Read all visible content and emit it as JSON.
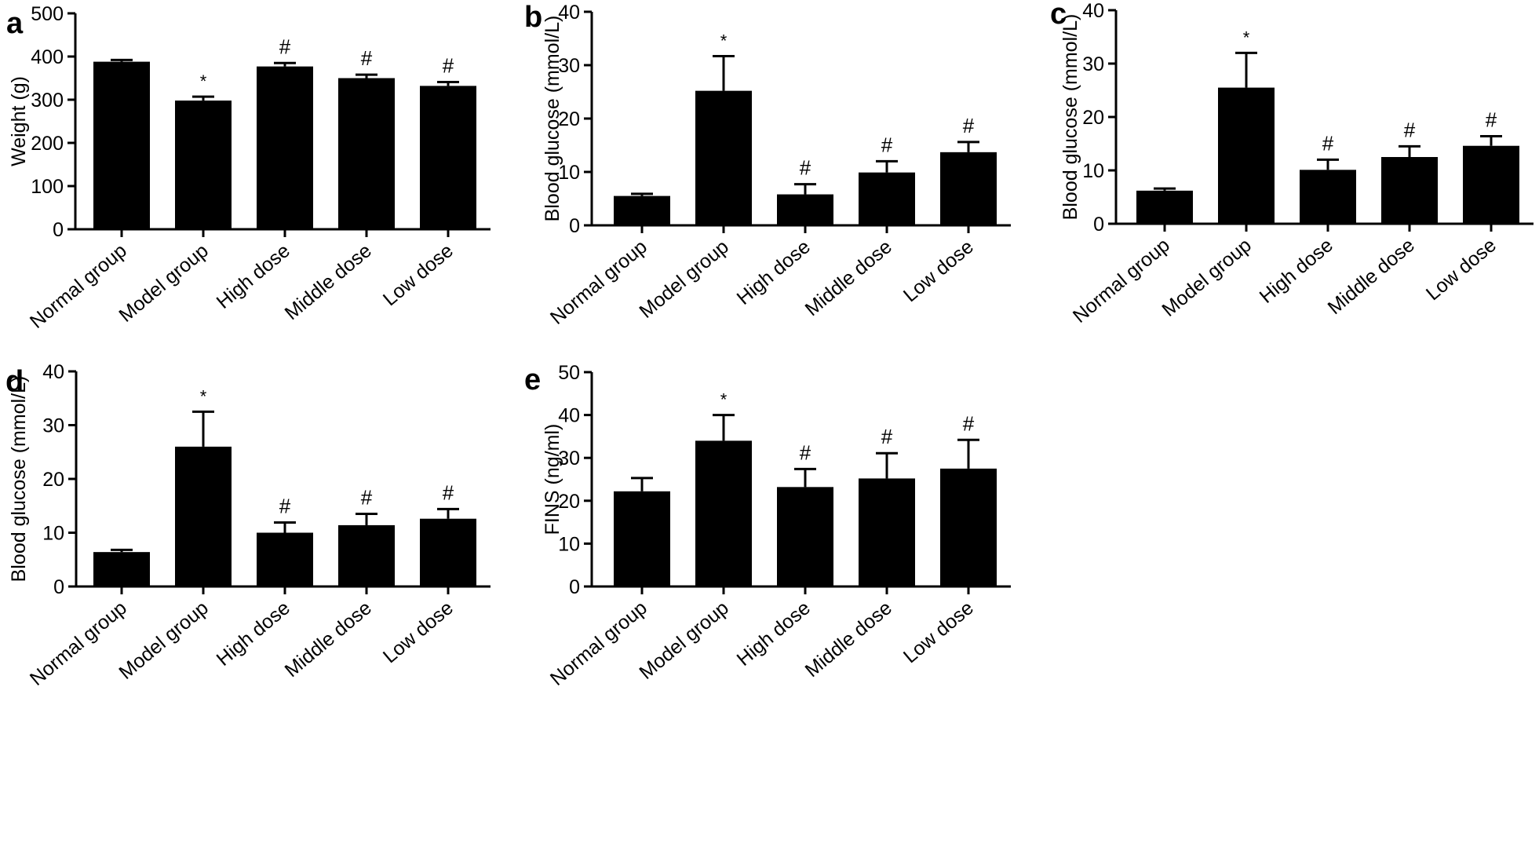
{
  "figure": {
    "background": "#ffffff",
    "bar_color": "#000000"
  },
  "chart_data": [
    {
      "id": "a",
      "panel_label": "a",
      "type": "bar",
      "ylabel": "Weight (g)",
      "ylim": [
        0,
        500
      ],
      "yticks": [
        0,
        100,
        200,
        300,
        400,
        500
      ],
      "categories": [
        "Normal group",
        "Model group",
        "High dose",
        "Middle dose",
        "Low dose"
      ],
      "values": [
        388,
        298,
        377,
        350,
        332
      ],
      "errors": [
        4,
        9,
        8,
        8,
        9
      ],
      "annotations": [
        "",
        "*",
        "#",
        "#",
        "#"
      ]
    },
    {
      "id": "b",
      "panel_label": "b",
      "type": "bar",
      "ylabel": "Blood glucose (mmol/L)",
      "ylim": [
        0,
        40
      ],
      "yticks": [
        0,
        10,
        20,
        30,
        40
      ],
      "categories": [
        "Normal group",
        "Model group",
        "High dose",
        "Middle dose",
        "Low dose"
      ],
      "values": [
        5.5,
        25.2,
        5.8,
        9.9,
        13.7
      ],
      "errors": [
        0.4,
        6.5,
        1.9,
        2.1,
        1.9
      ],
      "annotations": [
        "",
        "*",
        "#",
        "#",
        "#"
      ]
    },
    {
      "id": "c",
      "panel_label": "c",
      "type": "bar",
      "ylabel": "Blood glucose (mmol/L)",
      "ylim": [
        0,
        40
      ],
      "yticks": [
        0,
        10,
        20,
        30,
        40
      ],
      "categories": [
        "Normal group",
        "Model group",
        "High dose",
        "Middle dose",
        "Low dose"
      ],
      "values": [
        6.2,
        25.5,
        10.1,
        12.5,
        14.6
      ],
      "errors": [
        0.4,
        6.5,
        1.9,
        2.0,
        1.8
      ],
      "annotations": [
        "",
        "*",
        "#",
        "#",
        "#"
      ]
    },
    {
      "id": "d",
      "panel_label": "d",
      "type": "bar",
      "ylabel": "Blood glucose (mmol/L)",
      "ylim": [
        0,
        40
      ],
      "yticks": [
        0,
        10,
        20,
        30,
        40
      ],
      "categories": [
        "Normal group",
        "Model group",
        "High dose",
        "Middle dose",
        "Low dose"
      ],
      "values": [
        6.4,
        26.0,
        10.0,
        11.4,
        12.6
      ],
      "errors": [
        0.4,
        6.5,
        1.9,
        2.1,
        1.8
      ],
      "annotations": [
        "",
        "*",
        "#",
        "#",
        "#"
      ]
    },
    {
      "id": "e",
      "panel_label": "e",
      "type": "bar",
      "ylabel": "FINS (ng/ml)",
      "ylim": [
        0,
        50
      ],
      "yticks": [
        0,
        10,
        20,
        30,
        40,
        50
      ],
      "categories": [
        "Normal group",
        "Model group",
        "High dose",
        "Middle dose",
        "Low dose"
      ],
      "values": [
        22.2,
        34.0,
        23.2,
        25.2,
        27.5
      ],
      "errors": [
        3.1,
        6.0,
        4.2,
        5.9,
        6.7
      ],
      "annotations": [
        "",
        "*",
        "#",
        "#",
        "#"
      ]
    }
  ]
}
